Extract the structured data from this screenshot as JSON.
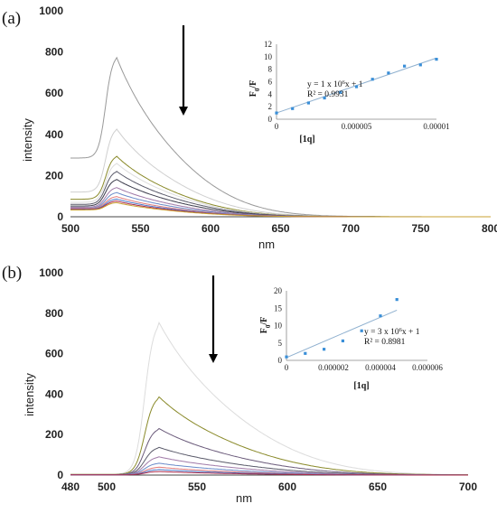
{
  "chart_data": [
    {
      "type": "line",
      "panel_label": "(a)",
      "xlabel": "nm",
      "ylabel": "intensity",
      "xlim": [
        500,
        800
      ],
      "ylim": [
        0,
        1000
      ],
      "x_ticks": [
        500,
        550,
        600,
        650,
        700,
        750,
        800
      ],
      "y_ticks": [
        0,
        200,
        400,
        600,
        800,
        1000
      ],
      "peak_x": 532,
      "series": [
        {
          "color": "#999999",
          "peak": 790,
          "start": 285
        },
        {
          "color": "#cfcfcf",
          "peak": 435,
          "start": 120
        },
        {
          "color": "#8a8a2a",
          "peak": 300,
          "start": 85
        },
        {
          "color": "#dddddd",
          "peak": 265,
          "start": 70
        },
        {
          "color": "#5a5a6a",
          "peak": 225,
          "start": 60
        },
        {
          "color": "#3c3c4c",
          "peak": 185,
          "start": 52
        },
        {
          "color": "#a07aa8",
          "peak": 145,
          "start": 46
        },
        {
          "color": "#6a8ac8",
          "peak": 120,
          "start": 42
        },
        {
          "color": "#e07a7a",
          "peak": 100,
          "start": 40
        },
        {
          "color": "#4a78c8",
          "peak": 88,
          "start": 37
        },
        {
          "color": "#aa2a4a",
          "peak": 78,
          "start": 35
        },
        {
          "color": "#c8a030",
          "peak": 70,
          "start": 33
        }
      ],
      "inset": {
        "type": "scatter",
        "xlabel": "[1q]",
        "ylabel": "F0/F",
        "xlim": [
          0,
          1e-05
        ],
        "ylim": [
          0,
          12
        ],
        "x_ticks": [
          "0",
          "0.000005",
          "0.00001"
        ],
        "x_tick_values": [
          0,
          5e-06,
          1e-05
        ],
        "y_ticks": [
          0,
          2,
          4,
          6,
          8,
          10,
          12
        ],
        "points": [
          [
            0,
            1
          ],
          [
            1e-06,
            1.7
          ],
          [
            2e-06,
            2.6
          ],
          [
            3e-06,
            3.4
          ],
          [
            4e-06,
            4.3
          ],
          [
            5e-06,
            5.2
          ],
          [
            6e-06,
            6.4
          ],
          [
            7e-06,
            7.4
          ],
          [
            8e-06,
            8.5
          ],
          [
            9e-06,
            8.7
          ],
          [
            1e-05,
            9.6
          ]
        ],
        "fit": {
          "slope": 880000,
          "intercept": 1,
          "x_end": 1e-05
        },
        "equation_base": "y = 1 x 10",
        "equation_exp": "6",
        "equation_rest": "x + 1",
        "r2": "R² = 0.9931"
      }
    },
    {
      "type": "line",
      "panel_label": "(b)",
      "xlabel": "nm",
      "ylabel": "intensity",
      "xlim": [
        480,
        700
      ],
      "ylim": [
        0,
        1000
      ],
      "x_ticks": [
        480,
        500,
        550,
        600,
        650,
        700
      ],
      "y_ticks": [
        0,
        200,
        400,
        600,
        800,
        1000
      ],
      "peak_x": 528,
      "series": [
        {
          "color": "#dcdcdc",
          "peak": 770,
          "start": 3
        },
        {
          "color": "#8a8a2a",
          "peak": 395,
          "start": 3
        },
        {
          "color": "#6a5a7a",
          "peak": 235,
          "start": 2
        },
        {
          "color": "#5a5a6a",
          "peak": 140,
          "start": 2
        },
        {
          "color": "#a07aa8",
          "peak": 92,
          "start": 2
        },
        {
          "color": "#6a8ac8",
          "peak": 60,
          "start": 2
        },
        {
          "color": "#e07a7a",
          "peak": 40,
          "start": 1
        },
        {
          "color": "#4a78c8",
          "peak": 28,
          "start": 1
        },
        {
          "color": "#aa2a4a",
          "peak": 18,
          "start": 1
        }
      ],
      "inset": {
        "type": "scatter",
        "xlabel": "[1q]",
        "ylabel": "F0/F",
        "xlim": [
          0,
          6e-06
        ],
        "ylim": [
          0,
          20
        ],
        "x_ticks": [
          "0",
          "0.000002",
          "0.000004",
          "0.000006"
        ],
        "x_tick_values": [
          0,
          2e-06,
          4e-06,
          6e-06
        ],
        "y_ticks": [
          0,
          5,
          10,
          15,
          20
        ],
        "points": [
          [
            0,
            1
          ],
          [
            8e-07,
            2
          ],
          [
            1.6e-06,
            3.2
          ],
          [
            2.4e-06,
            5.6
          ],
          [
            3.2e-06,
            8.5
          ],
          [
            4e-06,
            12.8
          ],
          [
            4.7e-06,
            17.5
          ]
        ],
        "fit": {
          "slope": 2900000,
          "intercept": 0.8,
          "x_end": 4.7e-06
        },
        "equation_base": "y = 3 x 10",
        "equation_exp": "6",
        "equation_rest": "x + 1",
        "r2": "R² = 0.8981"
      }
    }
  ]
}
